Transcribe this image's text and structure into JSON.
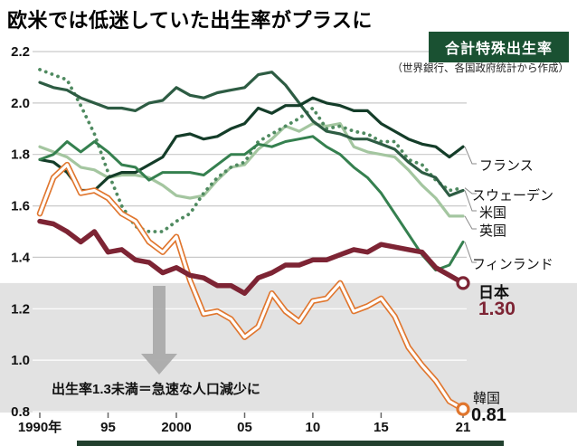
{
  "title": "欧米では低迷していた出生率がプラスに",
  "badge": "合計特殊出生率",
  "source_note": "（世界銀行、各国政府統計から作成）",
  "annotation": {
    "text": "出生率1.3未満＝急速な人口減少に",
    "arrow_icon": "down-arrow"
  },
  "labels": {
    "france": "フランス",
    "sweden": "スウェーデン",
    "usa": "米国",
    "uk": "英国",
    "finland": "フィンランド",
    "japan": "日本",
    "japan_value": "1.30",
    "korea": "韓国",
    "korea_value": "0.81"
  },
  "colors": {
    "badge_bg": "#1a5132",
    "band": "#e2e2e2",
    "japan": "#7d2434",
    "korea": "#e0762e"
  },
  "chart_data": {
    "type": "line",
    "title": "合計特殊出生率",
    "xlabel": "年",
    "ylabel": "合計特殊出生率",
    "x": [
      1990,
      1991,
      1992,
      1993,
      1994,
      1995,
      1996,
      1997,
      1998,
      1999,
      2000,
      2001,
      2002,
      2003,
      2004,
      2005,
      2006,
      2007,
      2008,
      2009,
      2010,
      2011,
      2012,
      2013,
      2014,
      2015,
      2016,
      2017,
      2018,
      2019,
      2020,
      2021
    ],
    "xlim": [
      1990,
      2021
    ],
    "ylim": [
      0.8,
      2.2
    ],
    "yticks": [
      0.8,
      1.0,
      1.2,
      1.4,
      1.6,
      1.8,
      2.0,
      2.2
    ],
    "xticks": [
      {
        "label": "1990年",
        "year": 1990
      },
      {
        "label": "95",
        "year": 1995
      },
      {
        "label": "2000",
        "year": 2000
      },
      {
        "label": "05",
        "year": 2005
      },
      {
        "label": "10",
        "year": 2010
      },
      {
        "label": "15",
        "year": 2015
      },
      {
        "label": "21",
        "year": 2021
      }
    ],
    "band": {
      "below": 1.3,
      "color": "#e2e2e2",
      "meaning": "出生率1.3未満＝急速な人口減少に"
    },
    "grid": true,
    "legend_position": "right-edge-labels",
    "series": [
      {
        "key": "uk",
        "name": "英国",
        "color": "#a4c6a0",
        "width": 3.2,
        "style": "solid",
        "marker": false,
        "values": [
          1.83,
          1.81,
          1.79,
          1.75,
          1.74,
          1.71,
          1.72,
          1.72,
          1.71,
          1.68,
          1.64,
          1.63,
          1.64,
          1.7,
          1.75,
          1.76,
          1.82,
          1.86,
          1.91,
          1.89,
          1.92,
          1.91,
          1.92,
          1.83,
          1.81,
          1.8,
          1.79,
          1.74,
          1.68,
          1.63,
          1.56,
          1.56
        ]
      },
      {
        "key": "sweden",
        "name": "スウェーデン",
        "color": "#4f8a60",
        "width": 3.8,
        "style": "dotted",
        "marker": false,
        "values": [
          2.13,
          2.11,
          2.09,
          1.99,
          1.88,
          1.73,
          1.6,
          1.52,
          1.5,
          1.5,
          1.54,
          1.57,
          1.65,
          1.71,
          1.75,
          1.77,
          1.85,
          1.88,
          1.91,
          1.94,
          1.98,
          1.9,
          1.91,
          1.89,
          1.88,
          1.85,
          1.85,
          1.78,
          1.76,
          1.7,
          1.66,
          1.67
        ]
      },
      {
        "key": "usa",
        "name": "米国",
        "color": "#2d5c43",
        "width": 3.2,
        "style": "solid",
        "marker": false,
        "values": [
          2.08,
          2.06,
          2.05,
          2.02,
          2.0,
          1.98,
          1.98,
          1.97,
          2.0,
          2.01,
          2.06,
          2.03,
          2.02,
          2.04,
          2.05,
          2.06,
          2.11,
          2.12,
          2.07,
          2.0,
          1.93,
          1.89,
          1.88,
          1.86,
          1.86,
          1.84,
          1.82,
          1.77,
          1.73,
          1.71,
          1.64,
          1.66
        ]
      },
      {
        "key": "france",
        "name": "フランス",
        "color": "#143d29",
        "width": 3.2,
        "style": "solid",
        "marker": false,
        "values": [
          1.78,
          1.77,
          1.73,
          1.66,
          1.66,
          1.71,
          1.73,
          1.73,
          1.76,
          1.79,
          1.87,
          1.88,
          1.86,
          1.87,
          1.9,
          1.92,
          1.98,
          1.96,
          1.99,
          1.99,
          2.02,
          2.0,
          1.99,
          1.97,
          1.97,
          1.92,
          1.89,
          1.86,
          1.84,
          1.83,
          1.79,
          1.83
        ]
      },
      {
        "key": "finland",
        "name": "フィンランド",
        "color": "#35804f",
        "width": 3.0,
        "style": "solid",
        "marker": false,
        "values": [
          1.78,
          1.8,
          1.85,
          1.81,
          1.85,
          1.81,
          1.76,
          1.75,
          1.7,
          1.73,
          1.73,
          1.73,
          1.72,
          1.76,
          1.8,
          1.8,
          1.84,
          1.83,
          1.85,
          1.86,
          1.87,
          1.83,
          1.8,
          1.75,
          1.71,
          1.65,
          1.57,
          1.49,
          1.41,
          1.35,
          1.37,
          1.46
        ]
      },
      {
        "key": "korea",
        "name": "韓国",
        "color": "#e0762e",
        "width": 3.0,
        "style": "outlined",
        "marker": true,
        "endpoint_label": "0.81",
        "values": [
          1.57,
          1.71,
          1.76,
          1.65,
          1.66,
          1.63,
          1.57,
          1.54,
          1.46,
          1.42,
          1.48,
          1.31,
          1.18,
          1.19,
          1.16,
          1.09,
          1.13,
          1.26,
          1.19,
          1.15,
          1.23,
          1.24,
          1.3,
          1.19,
          1.21,
          1.24,
          1.17,
          1.05,
          0.98,
          0.92,
          0.84,
          0.81
        ]
      },
      {
        "key": "japan",
        "name": "日本",
        "color": "#7d2434",
        "width": 5.5,
        "style": "solid",
        "marker": true,
        "endpoint_label": "1.30",
        "values": [
          1.54,
          1.53,
          1.5,
          1.46,
          1.5,
          1.42,
          1.43,
          1.39,
          1.38,
          1.34,
          1.36,
          1.33,
          1.32,
          1.29,
          1.29,
          1.26,
          1.32,
          1.34,
          1.37,
          1.37,
          1.39,
          1.39,
          1.41,
          1.43,
          1.42,
          1.45,
          1.44,
          1.43,
          1.42,
          1.36,
          1.33,
          1.3
        ]
      }
    ]
  }
}
